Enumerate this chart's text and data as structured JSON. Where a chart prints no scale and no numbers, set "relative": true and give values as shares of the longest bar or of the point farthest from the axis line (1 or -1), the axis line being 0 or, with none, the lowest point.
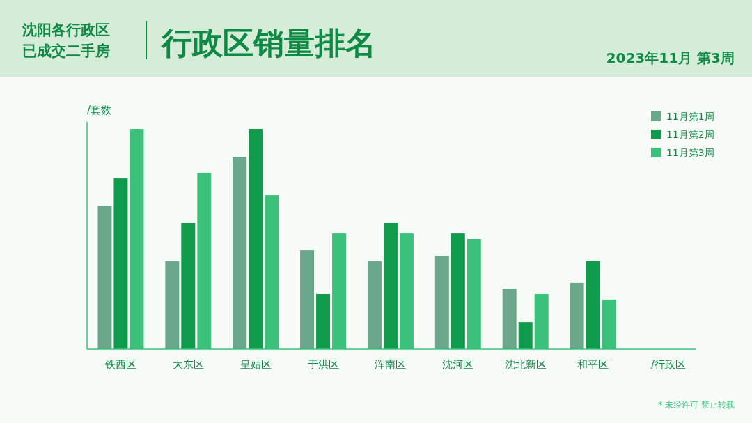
{
  "chart_data": {
    "type": "bar",
    "title": "行政区销量排名",
    "subtitle": "2023年11月 第3周",
    "annotations": [
      "沈阳各行政区已成交二手房",
      "* 未经许可 禁止转载"
    ],
    "ylabel": "/套数",
    "xlabel": "/行政区",
    "relative": true,
    "legend": "top right",
    "grid": false,
    "categories": [
      "铁西区",
      "大东区",
      "皇姑区",
      "于洪区",
      "浑南区",
      "沈河区",
      "沈北新区",
      "和平区"
    ],
    "series": [
      {
        "name": "11月第1周",
        "color": "#6aa889",
        "values": [
          0.649,
          0.399,
          0.873,
          0.449,
          0.399,
          0.424,
          0.275,
          0.301
        ]
      },
      {
        "name": "11月第2周",
        "color": "#0f9a4c",
        "values": [
          0.775,
          0.573,
          1,
          0.25,
          0.573,
          0.525,
          0.123,
          0.399
        ]
      },
      {
        "name": "11月第3周",
        "color": "#3cc17b",
        "values": [
          1,
          0.801,
          0.699,
          0.525,
          0.525,
          0.5,
          0.25,
          0.225
        ]
      }
    ]
  }
}
